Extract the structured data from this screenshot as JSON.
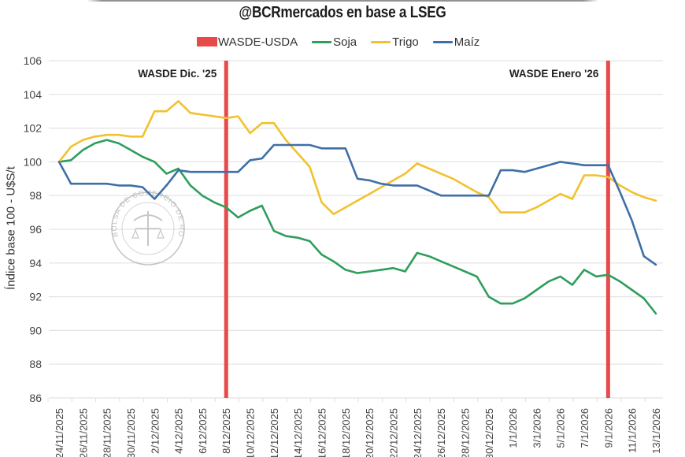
{
  "header": {
    "subtitle": "@BCRmercados en base a LSEG"
  },
  "legend": [
    {
      "label": "WASDE-USDA",
      "type": "box",
      "color": "#e84a4a"
    },
    {
      "label": "Soja",
      "type": "line",
      "color": "#2e9e5b"
    },
    {
      "label": "Trigo",
      "type": "line",
      "color": "#f2c12e"
    },
    {
      "label": "Maíz",
      "type": "line",
      "color": "#3f6fa6"
    }
  ],
  "annotations": [
    {
      "text": "WASDE Dic. '25",
      "category": "8/12/2025",
      "point_index": 14
    },
    {
      "text": "WASDE Enero '26",
      "category": "9/1/2026",
      "point_index": 46
    }
  ],
  "stamp": {
    "text": "BOLSA DE COMERCIO DE ROSARIO"
  },
  "chart_data": {
    "type": "line",
    "title": "@BCRmercados en base a LSEG",
    "xlabel": "",
    "ylabel": "Índice base 100 - U$S/t",
    "ylim": [
      86,
      106
    ],
    "yticks": [
      86,
      88,
      90,
      92,
      94,
      96,
      98,
      100,
      102,
      104,
      106
    ],
    "grid": true,
    "legend_position": "top",
    "categories": [
      "24/11/2025",
      "26/11/2025",
      "28/11/2025",
      "30/11/2025",
      "2/12/2025",
      "4/12/2025",
      "6/12/2025",
      "8/12/2025",
      "10/12/2025",
      "12/12/2025",
      "14/12/2025",
      "16/12/2025",
      "18/12/2025",
      "20/12/2025",
      "22/12/2025",
      "24/12/2025",
      "26/12/2025",
      "28/12/2025",
      "30/12/2025",
      "1/1/2026",
      "3/1/2026",
      "5/1/2026",
      "7/1/2026",
      "9/1/2026",
      "11/1/2026",
      "13/1/2026"
    ],
    "points_per_category": 2,
    "vertical_markers": [
      {
        "name": "WASDE-USDA",
        "label": "WASDE Dic. '25",
        "at": "8/12/2025"
      },
      {
        "name": "WASDE-USDA",
        "label": "WASDE Enero '26",
        "at": "9/1/2026"
      }
    ],
    "series": [
      {
        "name": "Soja",
        "color": "#2e9e5b",
        "values": [
          100,
          100.1,
          100.7,
          101.1,
          101.3,
          101.1,
          100.7,
          100.3,
          100.0,
          99.3,
          99.6,
          98.6,
          98.0,
          97.6,
          97.3,
          96.7,
          97.1,
          97.4,
          95.9,
          95.6,
          95.5,
          95.3,
          94.5,
          94.1,
          93.6,
          93.4,
          93.5,
          93.6,
          93.7,
          93.5,
          94.6,
          94.4,
          94.1,
          93.8,
          93.5,
          93.2,
          92.0,
          91.6,
          91.6,
          91.9,
          92.4,
          92.9,
          93.2,
          92.7,
          93.6,
          93.2,
          93.3,
          92.9,
          92.4,
          91.9,
          91.0
        ]
      },
      {
        "name": "Trigo",
        "color": "#f2c12e",
        "values": [
          100,
          100.9,
          101.3,
          101.5,
          101.6,
          101.6,
          101.5,
          101.5,
          103.0,
          103.0,
          103.6,
          102.9,
          102.8,
          102.7,
          102.6,
          102.7,
          101.7,
          102.3,
          102.3,
          101.3,
          100.5,
          99.7,
          97.6,
          96.9,
          97.3,
          97.7,
          98.1,
          98.5,
          98.9,
          99.3,
          99.9,
          99.6,
          99.3,
          99.0,
          98.6,
          98.2,
          97.9,
          97.0,
          97.0,
          97.0,
          97.3,
          97.7,
          98.1,
          97.8,
          99.2,
          99.2,
          99.1,
          98.6,
          98.2,
          97.9,
          97.7
        ]
      },
      {
        "name": "Maíz",
        "color": "#3f6fa6",
        "values": [
          100,
          98.7,
          98.7,
          98.7,
          98.7,
          98.6,
          98.6,
          98.5,
          97.8,
          98.6,
          99.5,
          99.4,
          99.4,
          99.4,
          99.4,
          99.4,
          100.1,
          100.2,
          101.0,
          101.0,
          101.0,
          101.0,
          100.8,
          100.8,
          100.8,
          99.0,
          98.9,
          98.7,
          98.6,
          98.6,
          98.6,
          98.3,
          98.0,
          98.0,
          98.0,
          98.0,
          98.0,
          99.5,
          99.5,
          99.4,
          99.6,
          99.8,
          100.0,
          99.9,
          99.8,
          99.8,
          99.8,
          98.2,
          96.5,
          94.4,
          93.9
        ]
      }
    ]
  }
}
